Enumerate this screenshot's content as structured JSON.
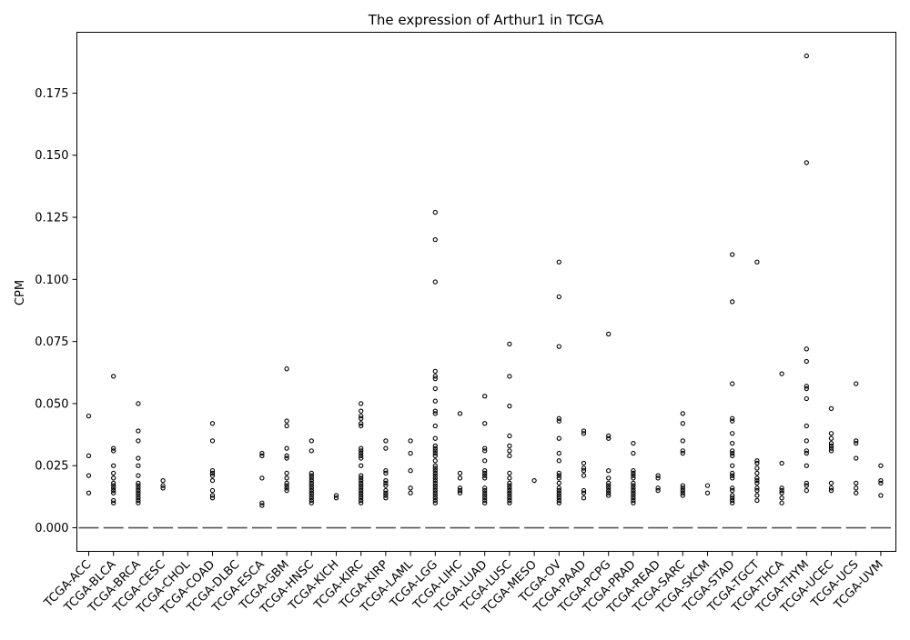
{
  "chart_data": {
    "type": "box",
    "title": "The expression of Arthur1 in TCGA",
    "xlabel": "",
    "ylabel": "CPM",
    "ylim": [
      -0.0095,
      0.1995
    ],
    "yticks": [
      "0.000",
      "0.025",
      "0.050",
      "0.075",
      "0.100",
      "0.125",
      "0.150",
      "0.175"
    ],
    "ytick_values": [
      0,
      0.025,
      0.05,
      0.075,
      0.1,
      0.125,
      0.15,
      0.175
    ],
    "grid": false,
    "legend": "none",
    "colors": {
      "median": "#555555",
      "outlier": "#000000",
      "axis": "#000000"
    },
    "categories": [
      "TCGA-ACC",
      "TCGA-BLCA",
      "TCGA-BRCA",
      "TCGA-CESC",
      "TCGA-CHOL",
      "TCGA-COAD",
      "TCGA-DLBC",
      "TCGA-ESCA",
      "TCGA-GBM",
      "TCGA-HNSC",
      "TCGA-KICH",
      "TCGA-KIRC",
      "TCGA-KIRP",
      "TCGA-LAML",
      "TCGA-LGG",
      "TCGA-LIHC",
      "TCGA-LUAD",
      "TCGA-LUSC",
      "TCGA-MESO",
      "TCGA-OV",
      "TCGA-PAAD",
      "TCGA-PCPG",
      "TCGA-PRAD",
      "TCGA-READ",
      "TCGA-SARC",
      "TCGA-SKCM",
      "TCGA-STAD",
      "TCGA-TGCT",
      "TCGA-THCA",
      "TCGA-THYM",
      "TCGA-UCEC",
      "TCGA-UCS",
      "TCGA-UVM"
    ],
    "medians": [
      0,
      0,
      0,
      0,
      0,
      0,
      0,
      0,
      0,
      0,
      0,
      0,
      0,
      0,
      0,
      0,
      0,
      0,
      0,
      0,
      0,
      0,
      0,
      0,
      0,
      0,
      0,
      0,
      0,
      0,
      0,
      0,
      0
    ],
    "outliers": [
      [
        0.045,
        0.029,
        0.021,
        0.014
      ],
      [
        0.061,
        0.032,
        0.031,
        0.025,
        0.022,
        0.02,
        0.018,
        0.017,
        0.016,
        0.015,
        0.014,
        0.011,
        0.01
      ],
      [
        0.05,
        0.039,
        0.035,
        0.028,
        0.025,
        0.021,
        0.018,
        0.017,
        0.016,
        0.015,
        0.014,
        0.013,
        0.012,
        0.011,
        0.01
      ],
      [
        0.019,
        0.017,
        0.016
      ],
      [],
      [
        0.042,
        0.035,
        0.023,
        0.022,
        0.021,
        0.019,
        0.015,
        0.013,
        0.012
      ],
      [],
      [
        0.03,
        0.029,
        0.02,
        0.01,
        0.009
      ],
      [
        0.064,
        0.043,
        0.041,
        0.032,
        0.029,
        0.028,
        0.022,
        0.02,
        0.018,
        0.017,
        0.016,
        0.015
      ],
      [
        0.035,
        0.031,
        0.022,
        0.021,
        0.02,
        0.019,
        0.018,
        0.017,
        0.016,
        0.015,
        0.014,
        0.013,
        0.012,
        0.011,
        0.01
      ],
      [
        0.013,
        0.012
      ],
      [
        0.05,
        0.047,
        0.045,
        0.044,
        0.042,
        0.041,
        0.032,
        0.031,
        0.03,
        0.029,
        0.028,
        0.025,
        0.021,
        0.02,
        0.019,
        0.018,
        0.017,
        0.016,
        0.015,
        0.014,
        0.013,
        0.012,
        0.011,
        0.01
      ],
      [
        0.035,
        0.032,
        0.023,
        0.022,
        0.019,
        0.018,
        0.017,
        0.015,
        0.014,
        0.013,
        0.012
      ],
      [
        0.035,
        0.03,
        0.023,
        0.016,
        0.014
      ],
      [
        0.127,
        0.116,
        0.099,
        0.063,
        0.061,
        0.06,
        0.056,
        0.051,
        0.047,
        0.046,
        0.041,
        0.036,
        0.033,
        0.032,
        0.031,
        0.03,
        0.029,
        0.027,
        0.025,
        0.024,
        0.023,
        0.022,
        0.021,
        0.02,
        0.019,
        0.018,
        0.017,
        0.016,
        0.015,
        0.014,
        0.013,
        0.012,
        0.011,
        0.01
      ],
      [
        0.046,
        0.022,
        0.02,
        0.016,
        0.015,
        0.014
      ],
      [
        0.053,
        0.042,
        0.032,
        0.031,
        0.027,
        0.023,
        0.022,
        0.021,
        0.02,
        0.016,
        0.015,
        0.014,
        0.013,
        0.012,
        0.011,
        0.01
      ],
      [
        0.074,
        0.061,
        0.049,
        0.037,
        0.033,
        0.031,
        0.029,
        0.022,
        0.02,
        0.018,
        0.017,
        0.016,
        0.015,
        0.014,
        0.013,
        0.012,
        0.011,
        0.01
      ],
      [
        0.019
      ],
      [
        0.107,
        0.093,
        0.073,
        0.044,
        0.043,
        0.036,
        0.03,
        0.027,
        0.022,
        0.021,
        0.02,
        0.018,
        0.016,
        0.015,
        0.014,
        0.013,
        0.012,
        0.011,
        0.01
      ],
      [
        0.039,
        0.038,
        0.026,
        0.024,
        0.023,
        0.021,
        0.015,
        0.014,
        0.012
      ],
      [
        0.078,
        0.037,
        0.036,
        0.023,
        0.02,
        0.018,
        0.017,
        0.016,
        0.015,
        0.014,
        0.013
      ],
      [
        0.034,
        0.03,
        0.023,
        0.022,
        0.021,
        0.02,
        0.018,
        0.017,
        0.016,
        0.015,
        0.014,
        0.013,
        0.012,
        0.011,
        0.01
      ],
      [
        0.021,
        0.02,
        0.016,
        0.015
      ],
      [
        0.046,
        0.042,
        0.035,
        0.031,
        0.03,
        0.017,
        0.016,
        0.015,
        0.014,
        0.013
      ],
      [
        0.017,
        0.014
      ],
      [
        0.11,
        0.091,
        0.058,
        0.044,
        0.043,
        0.038,
        0.034,
        0.031,
        0.03,
        0.029,
        0.025,
        0.022,
        0.021,
        0.02,
        0.016,
        0.015,
        0.013,
        0.012,
        0.011,
        0.01
      ],
      [
        0.107,
        0.027,
        0.026,
        0.024,
        0.022,
        0.02,
        0.019,
        0.018,
        0.016,
        0.015,
        0.013,
        0.011
      ],
      [
        0.062,
        0.026,
        0.016,
        0.015,
        0.014,
        0.012,
        0.01
      ],
      [
        0.19,
        0.147,
        0.072,
        0.067,
        0.057,
        0.056,
        0.052,
        0.041,
        0.035,
        0.031,
        0.03,
        0.025,
        0.018,
        0.017,
        0.015
      ],
      [
        0.048,
        0.038,
        0.036,
        0.034,
        0.033,
        0.032,
        0.031,
        0.018,
        0.016,
        0.015
      ],
      [
        0.058,
        0.035,
        0.034,
        0.028,
        0.018,
        0.016,
        0.014
      ],
      [
        0.025,
        0.019,
        0.018,
        0.013
      ]
    ]
  }
}
